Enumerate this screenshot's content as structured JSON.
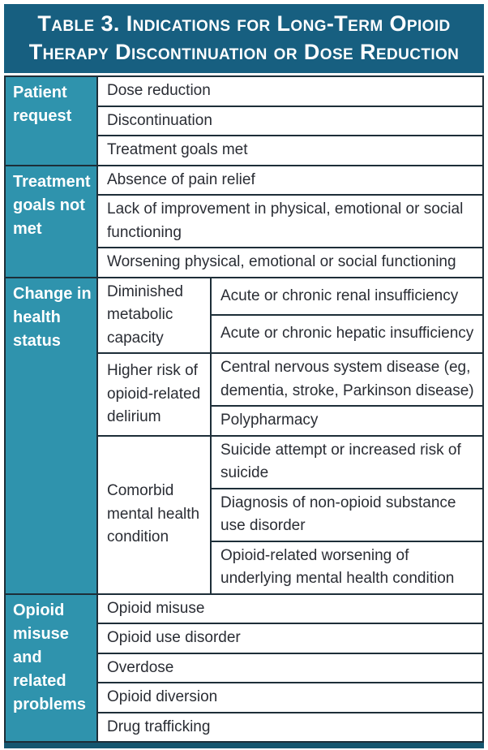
{
  "title": {
    "lines": [
      "Table 3. Indications for Long-Term Opioid",
      "Therapy Discontinuation or Dose Reduction"
    ]
  },
  "colors": {
    "title_background": "#175f80",
    "section_header_background": "#2f93ad",
    "row_blue": "#c9deec",
    "row_blue_light": "#e2ebf3",
    "row_white": "#ffffff",
    "border": "#1d2e38",
    "body_text": "#2a2d34",
    "header_text": "#ffffff",
    "bottom_bar": "#15566f"
  },
  "sections": [
    {
      "header": "Patient request",
      "rows": [
        "Dose reduction",
        "Discontinuation",
        "Treatment goals met"
      ]
    },
    {
      "header": "Treatment goals not met",
      "rows": [
        "Absence of pain relief",
        "Lack of improvement in physical, emotional or social functioning",
        "Worsening physical, emotional or social functioning"
      ]
    },
    {
      "header": "Change in health status",
      "groups": [
        {
          "label": "Diminished metabolic capacity",
          "items": [
            "Acute or chronic renal insufficiency",
            "Acute or chronic hepatic insufficiency"
          ]
        },
        {
          "label": "Higher risk of opioid-related delirium",
          "items": [
            "Central nervous system disease (eg, dementia, stroke, Parkinson disease)",
            "Polypharmacy"
          ]
        },
        {
          "label": "Comorbid mental health condition",
          "items": [
            "Suicide attempt or increased risk of suicide",
            "Diagnosis of non-opioid substance use disorder",
            "Opioid-related worsening of underlying mental health condition"
          ]
        }
      ]
    },
    {
      "header": "Opioid misuse and related problems",
      "rows": [
        "Opioid misuse",
        "Opioid use disorder",
        "Overdose",
        "Opioid diversion",
        "Drug trafficking"
      ]
    }
  ]
}
